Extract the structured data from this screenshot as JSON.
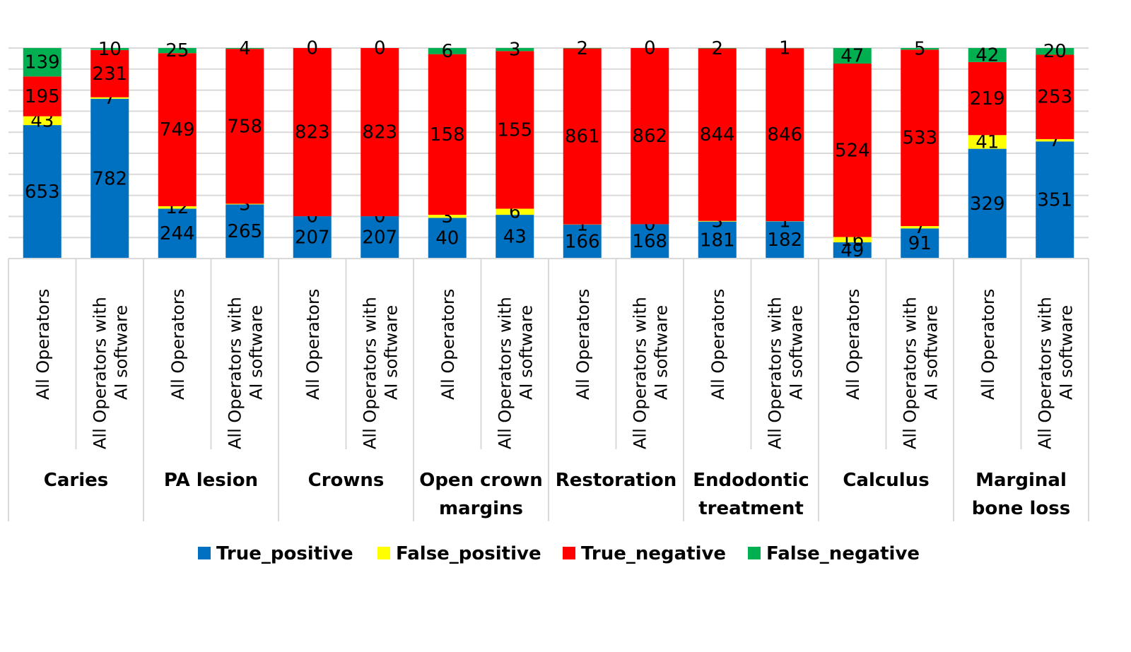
{
  "chart_data": {
    "type": "bar",
    "stacked": "percent",
    "title": "",
    "xlabel": "",
    "ylabel": "",
    "grid": true,
    "legend_position": "bottom",
    "groups": [
      "Caries",
      "PA lesion",
      "Crowns",
      "Open crown margins",
      "Restoration",
      "Endodontic treatment",
      "Calculus",
      "Marginal bone loss"
    ],
    "subcategories": [
      "All Operators",
      "All Operators with AI software"
    ],
    "series": [
      {
        "name": "True_positive",
        "color": "#0070C0",
        "values": [
          653,
          782,
          244,
          265,
          207,
          207,
          40,
          43,
          166,
          168,
          181,
          182,
          49,
          91,
          329,
          351
        ]
      },
      {
        "name": "False_positive",
        "color": "#FFFF00",
        "values": [
          43,
          7,
          12,
          3,
          0,
          0,
          3,
          6,
          1,
          0,
          3,
          1,
          16,
          7,
          41,
          7
        ]
      },
      {
        "name": "True_negative",
        "color": "#FF0000",
        "values": [
          195,
          231,
          749,
          758,
          823,
          823,
          158,
          155,
          861,
          862,
          844,
          846,
          524,
          533,
          219,
          253
        ]
      },
      {
        "name": "False_negative",
        "color": "#00B050",
        "values": [
          139,
          10,
          25,
          4,
          0,
          0,
          6,
          3,
          2,
          0,
          2,
          1,
          47,
          5,
          42,
          20
        ]
      }
    ]
  },
  "labels": {
    "groups": [
      [
        "Caries"
      ],
      [
        "PA lesion"
      ],
      [
        "Crowns"
      ],
      [
        "Open crown",
        "margins"
      ],
      [
        "Restoration"
      ],
      [
        "Endodontic",
        "treatment"
      ],
      [
        "Calculus"
      ],
      [
        "Marginal",
        "bone loss"
      ]
    ],
    "sub": [
      [
        "All Operators"
      ],
      [
        "All Operators with",
        "AI software"
      ]
    ]
  },
  "legend": [
    {
      "label": "True_positive",
      "color": "#0070C0"
    },
    {
      "label": "False_positive",
      "color": "#FFFF00"
    },
    {
      "label": "True_negative",
      "color": "#FF0000"
    },
    {
      "label": "False_negative",
      "color": "#00B050"
    }
  ]
}
